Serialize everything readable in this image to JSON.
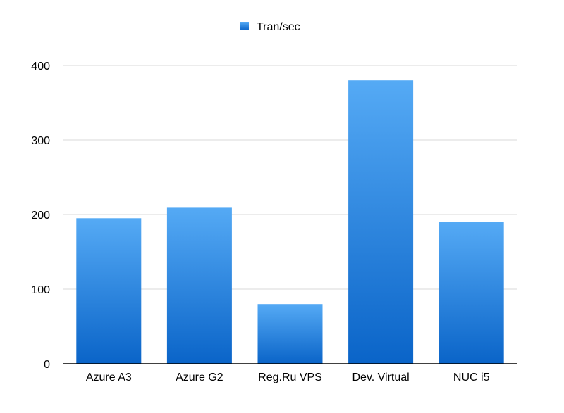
{
  "chart_data": {
    "type": "bar",
    "title": "",
    "xlabel": "",
    "ylabel": "",
    "categories": [
      "Azure A3",
      "Azure G2",
      "Reg.Ru VPS",
      "Dev. Virtual",
      "NUC i5"
    ],
    "series": [
      {
        "name": "Tran/sec",
        "values": [
          195,
          210,
          80,
          380,
          190
        ]
      }
    ],
    "ylim": [
      0,
      400
    ],
    "yticks": [
      0,
      100,
      200,
      300,
      400
    ],
    "grid": true,
    "legend_position": "top-center",
    "colors": {
      "bar_top": "#55aaf5",
      "bar_bottom": "#0a64c8",
      "grid": "#d9d9d9",
      "axis": "#000000"
    }
  }
}
